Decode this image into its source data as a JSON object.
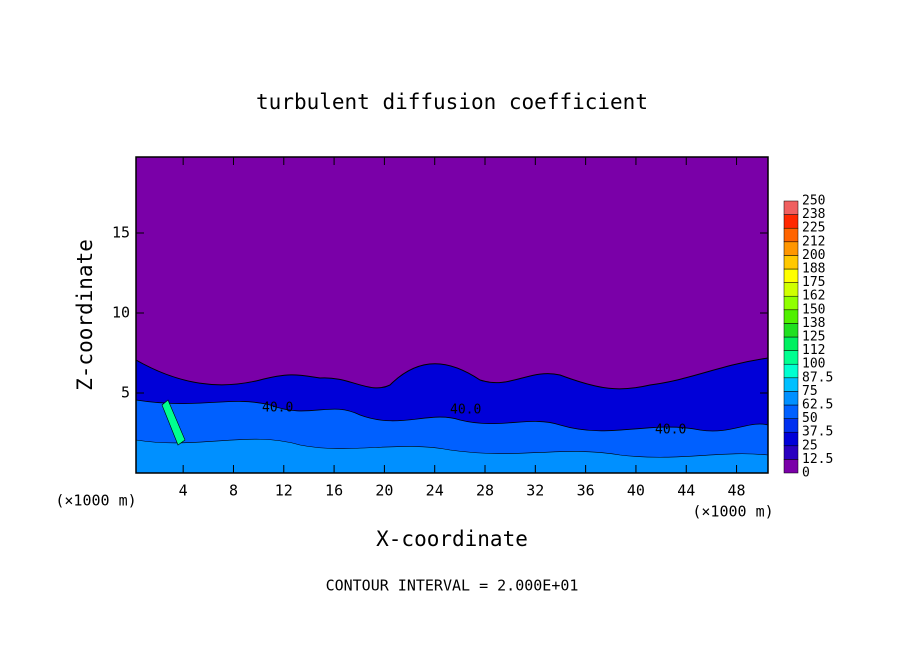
{
  "chart_data": {
    "type": "contour",
    "title": "turbulent diffusion coefficient",
    "x_label": "X-coordinate",
    "y_label": "Z-coordinate",
    "x_unit": "(×1000 m)",
    "y_unit": "(×1000 m)",
    "footer": "CONTOUR INTERVAL = 2.000E+01",
    "contour_labels": [
      "40.0",
      "40.0",
      "40.0"
    ],
    "xlim": [
      0.25,
      50.5
    ],
    "ylim": [
      0,
      19.75
    ],
    "xticks": [
      4,
      8,
      12,
      16,
      20,
      24,
      28,
      32,
      36,
      40,
      44,
      48
    ],
    "yticks": [
      5,
      10,
      15
    ],
    "colorbar": {
      "levels": [
        0,
        12.5,
        25,
        37.5,
        50,
        62.5,
        75,
        87.5,
        100,
        112,
        125,
        138,
        150,
        162,
        175,
        188,
        200,
        212,
        225,
        238,
        250
      ],
      "colors": [
        "#7a00a8",
        "#2a00c0",
        "#0000d8",
        "#0030f0",
        "#0060ff",
        "#0090ff",
        "#00c0ff",
        "#00ffd0",
        "#00ff90",
        "#00f060",
        "#20e020",
        "#50f000",
        "#90ff00",
        "#d0ff00",
        "#ffff00",
        "#ffc800",
        "#ff9600",
        "#ff6400",
        "#ff2800",
        "#f06060"
      ]
    }
  }
}
